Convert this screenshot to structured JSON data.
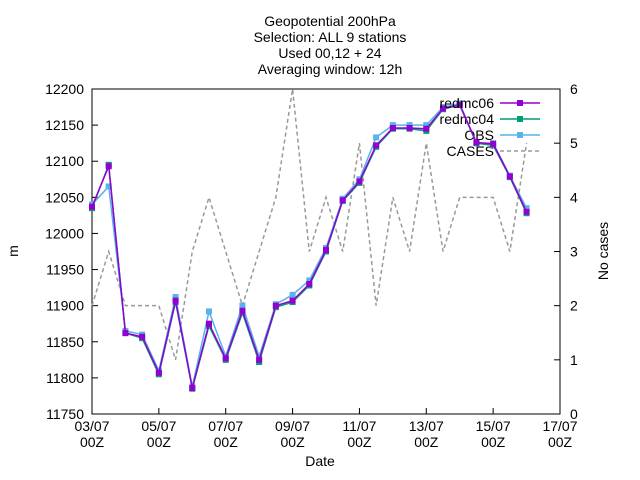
{
  "chart_data": {
    "type": "line",
    "title": [
      "Geopotential 200hPa",
      "Selection: ALL      9 stations",
      "Used 00,12 + 24",
      "Averaging window: 12h"
    ],
    "xlabel": "Date",
    "ylabel": "m",
    "y2label": "No cases",
    "x": [
      0,
      12,
      24,
      36,
      48,
      60,
      72,
      84,
      96,
      108,
      120,
      132,
      144,
      156,
      168,
      180,
      192,
      204,
      216,
      228,
      240,
      252,
      264,
      276,
      288,
      300,
      312
    ],
    "xlim": [
      0,
      336
    ],
    "xticks": [
      {
        "value": 0,
        "label": "03/07 00Z"
      },
      {
        "value": 48,
        "label": "05/07 00Z"
      },
      {
        "value": 96,
        "label": "07/07 00Z"
      },
      {
        "value": 144,
        "label": "09/07 00Z"
      },
      {
        "value": 192,
        "label": "11/07 00Z"
      },
      {
        "value": 240,
        "label": "13/07 00Z"
      },
      {
        "value": 288,
        "label": "15/07 00Z"
      },
      {
        "value": 336,
        "label": "17/07 00Z"
      }
    ],
    "ylim": [
      11750,
      12200
    ],
    "yticks": [
      11750,
      11800,
      11850,
      11900,
      11950,
      12000,
      12050,
      12100,
      12150,
      12200
    ],
    "y2lim": [
      0,
      6
    ],
    "y2ticks": [
      0,
      1,
      2,
      3,
      4,
      5,
      6
    ],
    "series": [
      {
        "name": "redmc06",
        "color": "#9400d3",
        "values": [
          12037,
          12093,
          11862,
          11857,
          11807,
          11907,
          11786,
          11875,
          11827,
          11893,
          11825,
          11900,
          11907,
          11930,
          11977,
          12046,
          12072,
          12122,
          12146,
          12146,
          12145,
          12173,
          12178,
          12126,
          12124,
          12079,
          12030
        ]
      },
      {
        "name": "redmc04",
        "color": "#009e73",
        "values": [
          12035,
          12095,
          11862,
          11855,
          11805,
          11905,
          11785,
          11872,
          11825,
          11890,
          11822,
          11898,
          11905,
          11928,
          11975,
          12045,
          12070,
          12120,
          12145,
          12145,
          12142,
          12172,
          12178,
          12125,
          12122,
          12078,
          12028
        ]
      },
      {
        "name": "OBS",
        "color": "#56b4e9",
        "values": [
          12040,
          12065,
          11865,
          11860,
          11810,
          11912,
          11788,
          11892,
          11830,
          11900,
          11830,
          11902,
          11915,
          11935,
          11980,
          12048,
          12075,
          12133,
          12150,
          12150,
          12150,
          12175,
          12180,
          12125,
          12125,
          12080,
          12035
        ]
      },
      {
        "name": "CASES",
        "color": "#999999",
        "axis": "y2",
        "dashed": true,
        "values": [
          2,
          3,
          2,
          2,
          2,
          1,
          3,
          4,
          3,
          2,
          3,
          4,
          6,
          3,
          4,
          3,
          5,
          2,
          4,
          3,
          5,
          3,
          4,
          4,
          4,
          3,
          5
        ]
      }
    ]
  }
}
